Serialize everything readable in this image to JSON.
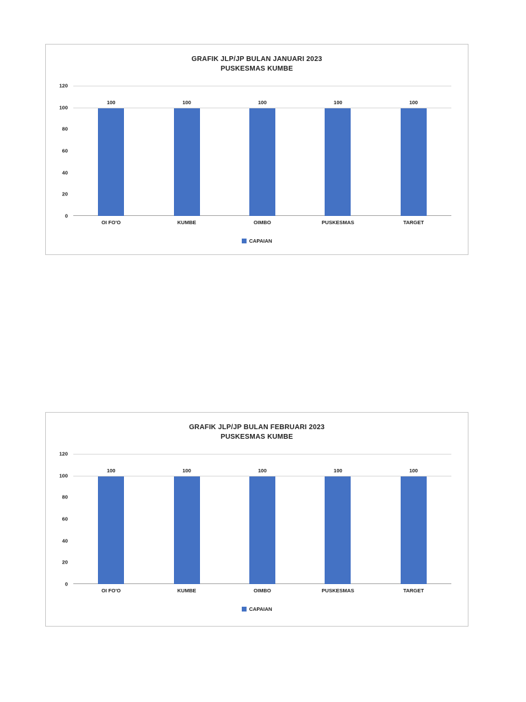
{
  "page": {
    "background_color": "#ffffff",
    "accent_color": "#4472C4"
  },
  "chart_data": [
    {
      "type": "bar",
      "title": "GRAFIK  JLP/JP BULAN JANUARI 2023",
      "subtitle": "PUSKESMAS KUMBE",
      "categories": [
        "OI FO'O",
        "KUMBE",
        "OIMBO",
        "PUSKESMAS",
        "TARGET"
      ],
      "series": [
        {
          "name": "CAPAIAN",
          "values": [
            100,
            100,
            100,
            100,
            100
          ]
        }
      ],
      "data_labels": [
        100,
        100,
        100,
        100,
        100
      ],
      "xlabel": "",
      "ylabel": "",
      "ylim": [
        0,
        120
      ],
      "yticks": [
        0,
        20,
        40,
        60,
        80,
        100,
        120
      ],
      "gridlines_at": [
        100,
        120
      ],
      "grid": true,
      "legend_position": "bottom",
      "bar_color": "#4472C4"
    },
    {
      "type": "bar",
      "title": "GRAFIK  JLP/JP BULAN FEBRUARI 2023",
      "subtitle": "PUSKESMAS KUMBE",
      "categories": [
        "OI FO'O",
        "KUMBE",
        "OIMBO",
        "PUSKESMAS",
        "TARGET"
      ],
      "series": [
        {
          "name": "CAPAIAN",
          "values": [
            100,
            100,
            100,
            100,
            100
          ]
        }
      ],
      "data_labels": [
        100,
        100,
        100,
        100,
        100
      ],
      "xlabel": "",
      "ylabel": "",
      "ylim": [
        0,
        120
      ],
      "yticks": [
        0,
        20,
        40,
        60,
        80,
        100,
        120
      ],
      "gridlines_at": [
        100,
        120
      ],
      "grid": true,
      "legend_position": "bottom",
      "bar_color": "#4472C4"
    }
  ]
}
